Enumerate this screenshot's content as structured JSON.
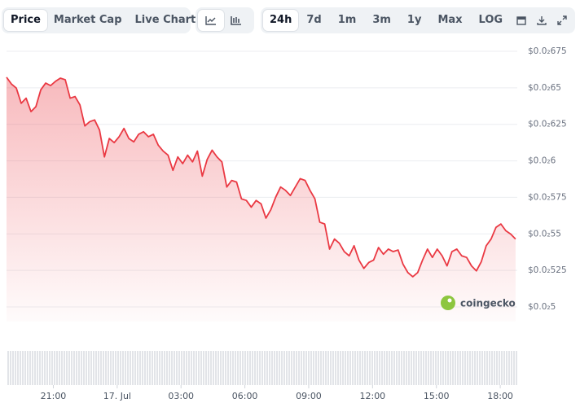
{
  "toolbar": {
    "tabs": [
      "Price",
      "Market Cap",
      "Live Chart"
    ],
    "ranges": [
      "24h",
      "7d",
      "1m",
      "3m",
      "1y",
      "Max",
      "LOG"
    ]
  },
  "chart_data": {
    "type": "line",
    "annotations": [
      "coingecko"
    ],
    "xlim": [
      -5.2,
      18.8
    ],
    "xticks": [
      {
        "value": -3,
        "label": "21:00"
      },
      {
        "value": 0,
        "label": "17. Jul"
      },
      {
        "value": 3,
        "label": "03:00"
      },
      {
        "value": 6,
        "label": "06:00"
      },
      {
        "value": 9,
        "label": "09:00"
      },
      {
        "value": 12,
        "label": "12:00"
      },
      {
        "value": 15,
        "label": "15:00"
      },
      {
        "value": 18,
        "label": "18:00"
      }
    ],
    "ylim": [
      0.0049,
      0.00685
    ],
    "yticks": [
      {
        "value": 0.005,
        "label": "$0.0₂5"
      },
      {
        "value": 0.00525,
        "label": "$0.0₂525"
      },
      {
        "value": 0.0055,
        "label": "$0.0₂55"
      },
      {
        "value": 0.00575,
        "label": "$0.0₂575"
      },
      {
        "value": 0.006,
        "label": "$0.0₂6"
      },
      {
        "value": 0.00625,
        "label": "$0.0₂625"
      },
      {
        "value": 0.0065,
        "label": "$0.0₂65"
      },
      {
        "value": 0.00675,
        "label": "$0.0₂675"
      }
    ],
    "grid": true,
    "x": [
      -5.2,
      -4.97,
      -4.74,
      -4.51,
      -4.28,
      -4.05,
      -3.82,
      -3.59,
      -3.36,
      -3.13,
      -2.9,
      -2.67,
      -2.44,
      -2.21,
      -1.98,
      -1.75,
      -1.52,
      -1.29,
      -1.06,
      -0.83,
      -0.6,
      -0.37,
      -0.14,
      0.09,
      0.32,
      0.55,
      0.78,
      1.01,
      1.24,
      1.47,
      1.7,
      1.93,
      2.16,
      2.39,
      2.62,
      2.85,
      3.08,
      3.31,
      3.54,
      3.77,
      4,
      4.23,
      4.46,
      4.69,
      4.92,
      5.15,
      5.38,
      5.61,
      5.84,
      6.07,
      6.3,
      6.53,
      6.76,
      6.99,
      7.22,
      7.45,
      7.68,
      7.91,
      8.14,
      8.37,
      8.6,
      8.83,
      9.06,
      9.29,
      9.52,
      9.75,
      9.98,
      10.21,
      10.44,
      10.67,
      10.9,
      11.13,
      11.36,
      11.59,
      11.82,
      12.05,
      12.28,
      12.51,
      12.74,
      12.97,
      13.2,
      13.43,
      13.66,
      13.89,
      14.12,
      14.35,
      14.58,
      14.81,
      15.04,
      15.27,
      15.5,
      15.73,
      15.96,
      16.19,
      16.42,
      16.65,
      16.88,
      17.11,
      17.34,
      17.57,
      17.8,
      18.03,
      18.26,
      18.49,
      18.72
    ],
    "series": [
      {
        "color": "#ea3943",
        "values": [
          0.006572,
          0.006526,
          0.006498,
          0.006394,
          0.006429,
          0.006337,
          0.006371,
          0.006486,
          0.006532,
          0.006515,
          0.006544,
          0.006566,
          0.006555,
          0.006429,
          0.00644,
          0.006383,
          0.006239,
          0.006268,
          0.00628,
          0.006211,
          0.006027,
          0.006153,
          0.006125,
          0.006165,
          0.006222,
          0.006153,
          0.00613,
          0.006182,
          0.006199,
          0.006165,
          0.006182,
          0.006107,
          0.006067,
          0.006039,
          0.005935,
          0.006027,
          0.005981,
          0.006039,
          0.005993,
          0.006067,
          0.005895,
          0.00601,
          0.006073,
          0.006027,
          0.005993,
          0.005821,
          0.005866,
          0.005855,
          0.00574,
          0.005729,
          0.005683,
          0.005729,
          0.005706,
          0.005608,
          0.005666,
          0.005752,
          0.005821,
          0.005798,
          0.005763,
          0.005821,
          0.005878,
          0.005866,
          0.005798,
          0.00574,
          0.00558,
          0.005568,
          0.005396,
          0.005465,
          0.005436,
          0.005379,
          0.00535,
          0.005419,
          0.005321,
          0.005264,
          0.005304,
          0.005321,
          0.005407,
          0.005361,
          0.005396,
          0.005379,
          0.00539,
          0.005293,
          0.005235,
          0.005207,
          0.005235,
          0.005321,
          0.005396,
          0.005339,
          0.005396,
          0.00535,
          0.005281,
          0.005379,
          0.005396,
          0.00535,
          0.005339,
          0.005281,
          0.005247,
          0.00531,
          0.005419,
          0.005465,
          0.005545,
          0.005568,
          0.005522,
          0.005499,
          0.005465
        ]
      }
    ]
  }
}
